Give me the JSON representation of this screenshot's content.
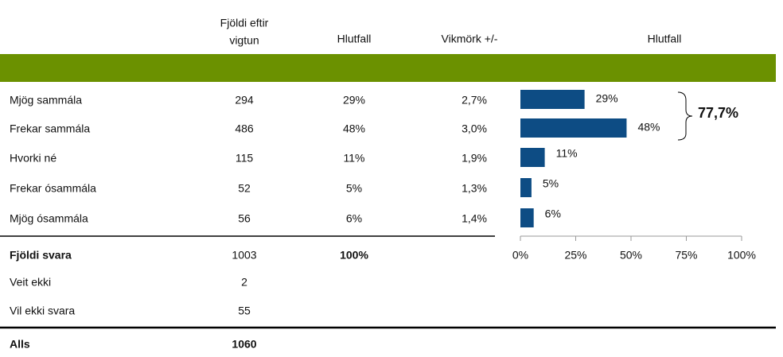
{
  "header": {
    "count": [
      "Fjöldi eftir",
      "vigtun"
    ],
    "share": "Hlutfall",
    "margin": "Vikmörk +/-"
  },
  "table": {
    "rows": [
      [
        "Mjög sammála",
        "294",
        "29%",
        "2,7%"
      ],
      [
        "Frekar sammála",
        "486",
        "48%",
        "3,0%"
      ],
      [
        "Hvorki né",
        "115",
        "11%",
        "1,9%"
      ],
      [
        "Frekar ósammála",
        "52",
        "5%",
        "1,3%"
      ],
      [
        "Mjög ósammála",
        "56",
        "6%",
        "1,4%"
      ]
    ],
    "totals": [
      [
        "Fjöldi svara",
        "1003",
        "100%"
      ],
      [
        "Veit ekki",
        "2"
      ],
      [
        "Vil ekki svara",
        "55"
      ]
    ],
    "grand_total": [
      "Alls",
      "1060"
    ]
  },
  "chart_data": {
    "type": "bar",
    "title": "Hlutfall",
    "values": [
      29,
      48,
      11,
      5,
      6
    ],
    "value_labels": [
      "29%",
      "48%",
      "11%",
      "5%",
      "6%"
    ],
    "color": "#0d4c84",
    "xlim": [
      0,
      100
    ],
    "xticks": [
      {
        "value": 0,
        "label": "0%"
      },
      {
        "value": 25,
        "label": "25%"
      },
      {
        "value": 50,
        "label": "50%"
      },
      {
        "value": 75,
        "label": "75%"
      },
      {
        "value": 100,
        "label": "100%"
      }
    ],
    "annotation": "77,7%"
  }
}
